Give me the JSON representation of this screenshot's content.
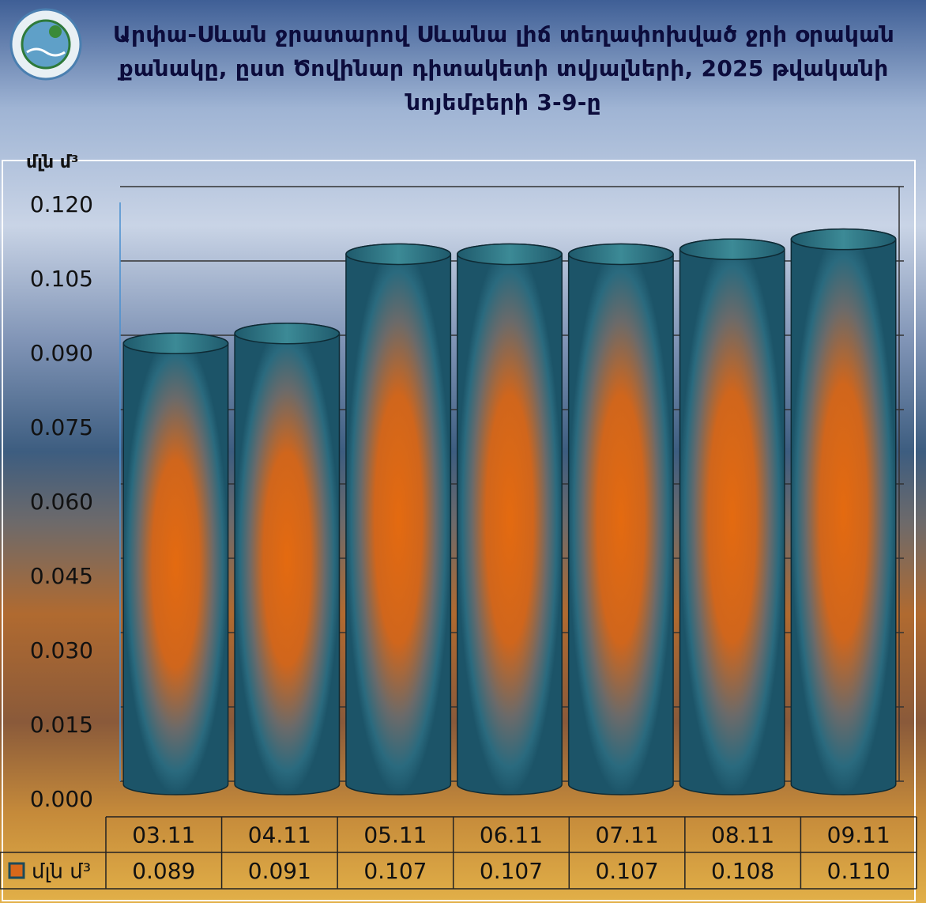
{
  "chart_data": {
    "type": "bar",
    "title": "Արփա-Սևան ջրատարով Սևանա լիճ տեղափոխված ջրի օրական քանակը, ըստ Ծովինար դիտակետի տվյալների, 2025 թվականի նոյեմբերի 3-9-ը",
    "y_label": "մլն մ³",
    "categories": [
      "03.11",
      "04.11",
      "05.11",
      "06.11",
      "07.11",
      "08.11",
      "09.11"
    ],
    "series": [
      {
        "name": "մլն մ³",
        "color": "#d9681a",
        "values": [
          0.089,
          0.091,
          0.107,
          0.107,
          0.107,
          0.108,
          0.11
        ],
        "value_labels": [
          "0.089",
          "0.091",
          "0.107",
          "0.107",
          "0.107",
          "0.108",
          "0.110"
        ]
      }
    ],
    "ylim": [
      0,
      0.12
    ],
    "yticks": [
      {
        "value": 0,
        "label": "0.000"
      },
      0.015,
      {
        "value": 0.03,
        "label": "0.030"
      },
      0.045,
      {
        "value": 0.06,
        "label": "0.060"
      },
      0.075,
      {
        "value": 0.09,
        "label": "0.090"
      },
      0.105,
      {
        "value": 0.12,
        "label": "0.120"
      }
    ],
    "grid": true,
    "data_table": true
  }
}
